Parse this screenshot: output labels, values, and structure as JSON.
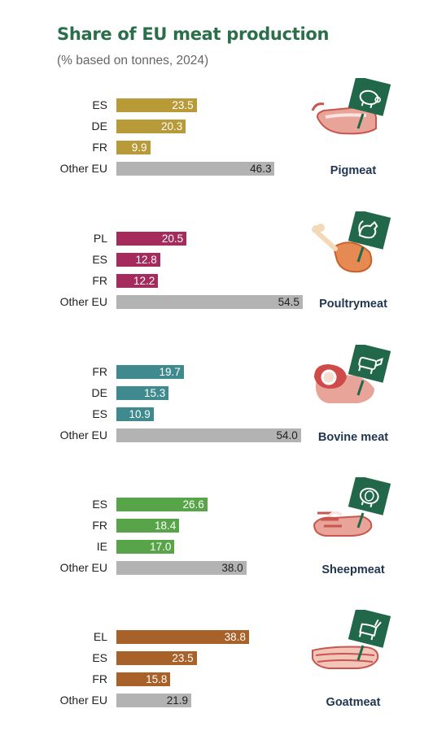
{
  "header": {
    "title": "Share of EU meat production",
    "subtitle": "(% based on tonnes, 2024)"
  },
  "colors": {
    "pigmeat": "#b89a38",
    "poultrymeat": "#a52b5c",
    "bovine": "#3f8a8e",
    "sheepmeat": "#58a448",
    "goatmeat": "#a9612a",
    "other": "#b3b3b3",
    "sign": "#21674a"
  },
  "chart_data": [
    {
      "type": "bar",
      "title": "Pigmeat",
      "categories": [
        "ES",
        "DE",
        "FR",
        "Other EU"
      ],
      "values": [
        23.5,
        20.3,
        9.9,
        46.3
      ],
      "labels": [
        "23.5",
        "20.3",
        "9.9",
        "46.3"
      ],
      "icon": "pig-icon"
    },
    {
      "type": "bar",
      "title": "Poultrymeat",
      "categories": [
        "PL",
        "ES",
        "FR",
        "Other EU"
      ],
      "values": [
        20.5,
        12.8,
        12.2,
        54.5
      ],
      "labels": [
        "20.5",
        "12.8",
        "12.2",
        "54.5"
      ],
      "icon": "rooster-icon"
    },
    {
      "type": "bar",
      "title": "Bovine meat",
      "categories": [
        "FR",
        "DE",
        "ES",
        "Other EU"
      ],
      "values": [
        19.7,
        15.3,
        10.9,
        54.0
      ],
      "labels": [
        "19.7",
        "15.3",
        "10.9",
        "54.0"
      ],
      "icon": "cow-icon"
    },
    {
      "type": "bar",
      "title": "Sheepmeat",
      "categories": [
        "ES",
        "FR",
        "IE",
        "Other EU"
      ],
      "values": [
        26.6,
        18.4,
        17.0,
        38.0
      ],
      "labels": [
        "26.6",
        "18.4",
        "17.0",
        "38.0"
      ],
      "icon": "sheep-icon"
    },
    {
      "type": "bar",
      "title": "Goatmeat",
      "categories": [
        "EL",
        "ES",
        "FR",
        "Other EU"
      ],
      "values": [
        38.8,
        23.5,
        15.8,
        21.9
      ],
      "labels": [
        "38.8",
        "23.5",
        "15.8",
        "21.9"
      ],
      "icon": "goat-icon"
    }
  ]
}
